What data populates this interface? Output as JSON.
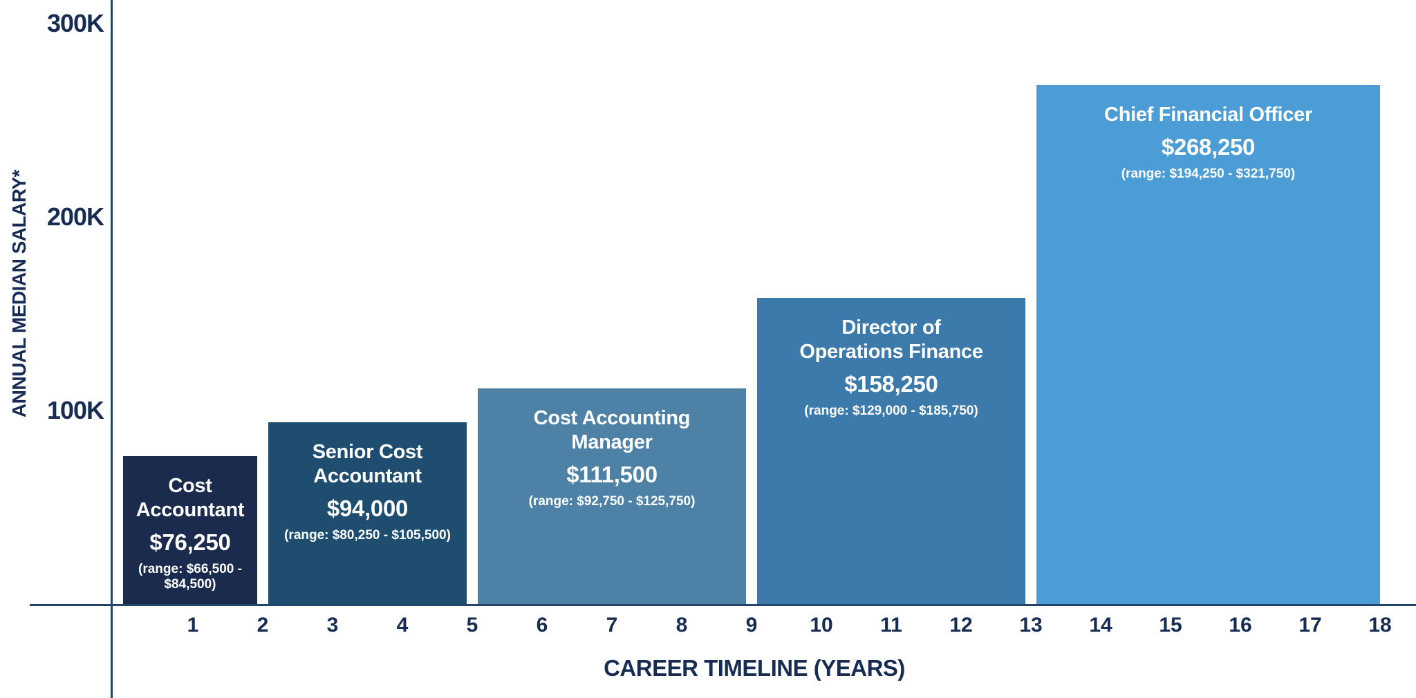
{
  "colors": {
    "background": "#ffffff",
    "axis_line": "#234569",
    "axis_text": "#172c52",
    "bar_text": "#ffffff"
  },
  "chart_data": {
    "type": "bar",
    "title": "",
    "xlabel": "CAREER TIMELINE (YEARS)",
    "ylabel": "ANNUAL MEDIAN SALARY*",
    "grid": false,
    "legend": false,
    "x_axis": {
      "min_year": 0,
      "max_year": 18,
      "tick_labels": [
        "1",
        "2",
        "3",
        "4",
        "5",
        "6",
        "7",
        "8",
        "9",
        "10",
        "11",
        "12",
        "13",
        "14",
        "15",
        "16",
        "17",
        "18"
      ]
    },
    "y_axis": {
      "min": 0,
      "max": 300000,
      "ticks": [
        {
          "label": "100K",
          "value": 100000
        },
        {
          "label": "200K",
          "value": 200000
        },
        {
          "label": "300K",
          "value": 300000
        }
      ]
    },
    "bars": [
      {
        "role": "Cost Accountant",
        "role_lines": [
          "Cost",
          "Accountant"
        ],
        "salary_label": "$76,250",
        "salary_value": 76250,
        "range_label": "(range: $66,500 - $84,500)",
        "range_lines": [
          "(range: $66,500 -",
          "$84,500)"
        ],
        "range_min": 66500,
        "range_max": 84500,
        "start_year": 0,
        "end_year": 2,
        "color": "#1b2b4e"
      },
      {
        "role": "Senior Cost Accountant",
        "role_lines": [
          "Senior Cost",
          "Accountant"
        ],
        "salary_label": "$94,000",
        "salary_value": 94000,
        "range_label": "(range: $80,250 - $105,500)",
        "range_lines": [
          "(range: $80,250 - $105,500)"
        ],
        "range_min": 80250,
        "range_max": 105500,
        "start_year": 2,
        "end_year": 5,
        "color": "#1e4d70"
      },
      {
        "role": "Cost Accounting Manager",
        "role_lines": [
          "Cost Accounting",
          "Manager"
        ],
        "salary_label": "$111,500",
        "salary_value": 111500,
        "range_label": "(range: $92,750 - $125,750)",
        "range_lines": [
          "(range: $92,750 - $125,750)"
        ],
        "range_min": 92750,
        "range_max": 125750,
        "start_year": 5,
        "end_year": 9,
        "color": "#4e81a6"
      },
      {
        "role": "Director of Operations Finance",
        "role_lines": [
          "Director of",
          "Operations Finance"
        ],
        "salary_label": "$158,250",
        "salary_value": 158250,
        "range_label": "(range: $129,000 - $185,750)",
        "range_lines": [
          "(range: $129,000 - $185,750)"
        ],
        "range_min": 129000,
        "range_max": 185750,
        "start_year": 9,
        "end_year": 13,
        "color": "#3b7aab"
      },
      {
        "role": "Chief Financial Officer",
        "role_lines": [
          "Chief Financial Officer"
        ],
        "salary_label": "$268,250",
        "salary_value": 268250,
        "range_label": "(range: $194,250 - $321,750)",
        "range_lines": [
          "(range: $194,250 - $321,750)"
        ],
        "range_min": 194250,
        "range_max": 321750,
        "start_year": 13,
        "end_year": 18,
        "color": "#4c9cd6"
      }
    ]
  }
}
